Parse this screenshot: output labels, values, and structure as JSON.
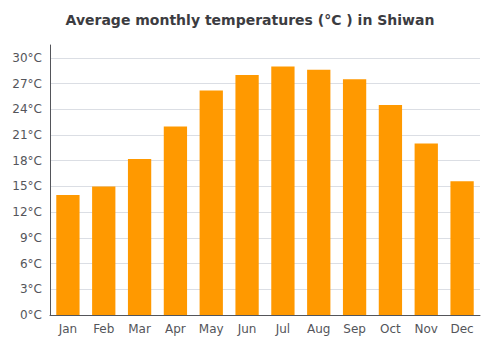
{
  "chart_data": {
    "type": "bar",
    "title": "Average monthly temperatures (°C ) in Shiwan",
    "categories": [
      "Jan",
      "Feb",
      "Mar",
      "Apr",
      "May",
      "Jun",
      "Jul",
      "Aug",
      "Sep",
      "Oct",
      "Nov",
      "Dec"
    ],
    "values": [
      14.0,
      15.0,
      18.2,
      22.0,
      26.2,
      28.0,
      29.0,
      28.6,
      27.5,
      24.5,
      20.0,
      15.6
    ],
    "color": "#FF9900",
    "ylim": [
      0,
      31.5
    ],
    "yticks": [
      {
        "value": 0,
        "label": "0°C"
      },
      {
        "value": 3,
        "label": "3°C"
      },
      {
        "value": 6,
        "label": "6°C"
      },
      {
        "value": 9,
        "label": "9°C"
      },
      {
        "value": 12,
        "label": "12°C"
      },
      {
        "value": 15,
        "label": "15°C"
      },
      {
        "value": 18,
        "label": "18°C"
      },
      {
        "value": 21,
        "label": "21°C"
      },
      {
        "value": 24,
        "label": "24°C"
      },
      {
        "value": 27,
        "label": "27°C"
      },
      {
        "value": 30,
        "label": "30°C"
      }
    ],
    "grid": true
  }
}
